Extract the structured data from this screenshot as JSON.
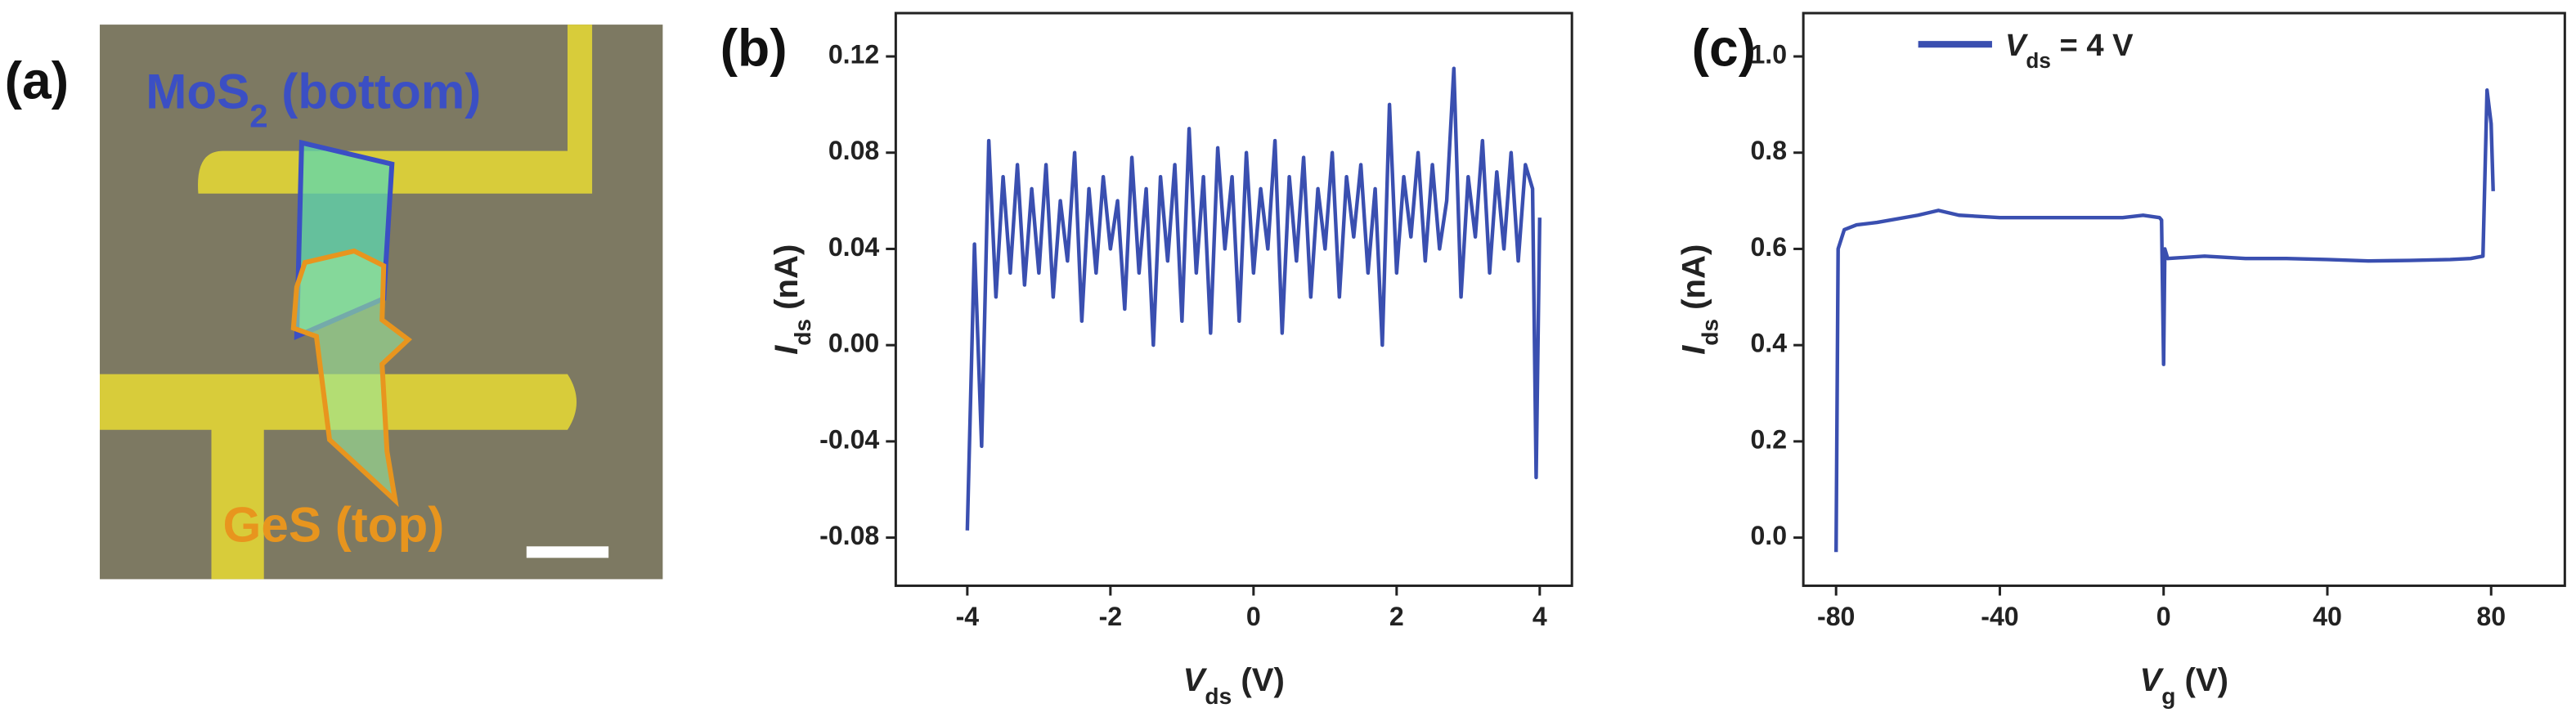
{
  "micrograph": {
    "panel": "(a)",
    "flake_bottom": {
      "main": "MoS",
      "sub": "2",
      "rest": " (bottom)"
    },
    "flake_top": "GeS (top)"
  },
  "chart_data": [
    {
      "type": "line",
      "panel": "(b)",
      "xlabel": {
        "main": "V",
        "sub": "ds",
        "unit": " (V)"
      },
      "ylabel": {
        "main": "I",
        "sub": "ds",
        "unit": " (nA)"
      },
      "xlim": [
        -5,
        4.45
      ],
      "xticks": [
        -4,
        -2,
        0,
        2,
        4
      ],
      "ylim": [
        -0.1,
        0.138
      ],
      "yticks": [
        -0.08,
        -0.04,
        {
          "value": 0,
          "label": "0.00"
        },
        0.04,
        0.08,
        0.12
      ],
      "x": [
        -4.0,
        -3.9,
        -3.8,
        -3.7,
        -3.6,
        -3.5,
        -3.4,
        -3.3,
        -3.2,
        -3.1,
        -3.0,
        -2.9,
        -2.8,
        -2.7,
        -2.6,
        -2.5,
        -2.4,
        -2.3,
        -2.2,
        -2.1,
        -2.0,
        -1.9,
        -1.8,
        -1.7,
        -1.6,
        -1.5,
        -1.4,
        -1.3,
        -1.2,
        -1.1,
        -1.0,
        -0.9,
        -0.8,
        -0.7,
        -0.6,
        -0.5,
        -0.4,
        -0.3,
        -0.2,
        -0.1,
        0.0,
        0.1,
        0.2,
        0.3,
        0.4,
        0.5,
        0.6,
        0.7,
        0.8,
        0.9,
        1.0,
        1.1,
        1.2,
        1.3,
        1.4,
        1.5,
        1.6,
        1.7,
        1.8,
        1.9,
        2.0,
        2.1,
        2.2,
        2.3,
        2.4,
        2.5,
        2.6,
        2.7,
        2.8,
        2.9,
        3.0,
        3.1,
        3.2,
        3.3,
        3.4,
        3.5,
        3.6,
        3.7,
        3.8,
        3.9,
        3.95,
        4.0
      ],
      "series": [
        {
          "color": "#3a4fb0",
          "values": [
            -0.077,
            0.042,
            -0.042,
            0.085,
            0.02,
            0.07,
            0.03,
            0.075,
            0.025,
            0.065,
            0.03,
            0.075,
            0.02,
            0.06,
            0.035,
            0.08,
            0.01,
            0.065,
            0.03,
            0.07,
            0.04,
            0.06,
            0.015,
            0.078,
            0.03,
            0.065,
            0.0,
            0.07,
            0.035,
            0.075,
            0.01,
            0.09,
            0.03,
            0.07,
            0.005,
            0.082,
            0.04,
            0.07,
            0.01,
            0.08,
            0.03,
            0.065,
            0.04,
            0.085,
            0.005,
            0.07,
            0.035,
            0.078,
            0.02,
            0.065,
            0.04,
            0.08,
            0.02,
            0.07,
            0.045,
            0.075,
            0.03,
            0.065,
            0.0,
            0.1,
            0.03,
            0.07,
            0.045,
            0.08,
            0.035,
            0.075,
            0.04,
            0.06,
            0.115,
            0.02,
            0.07,
            0.045,
            0.085,
            0.03,
            0.072,
            0.04,
            0.08,
            0.035,
            0.075,
            0.065,
            -0.055,
            0.053
          ]
        }
      ]
    },
    {
      "type": "line",
      "panel": "(c)",
      "xlabel": {
        "main": "V",
        "sub": "g",
        "unit": " (V)"
      },
      "ylabel": {
        "main": "I",
        "sub": "ds",
        "unit": " (nA)"
      },
      "xlim": [
        -88,
        98
      ],
      "xticks": [
        -80,
        -40,
        0,
        40,
        80
      ],
      "ylim": [
        -0.1,
        1.09
      ],
      "yticks": [
        {
          "value": 0,
          "label": "0.0"
        },
        0.2,
        0.4,
        0.6,
        0.8,
        {
          "value": 1,
          "label": "1.0"
        }
      ],
      "x": [
        -80,
        -79.5,
        -78,
        -75,
        -70,
        -60,
        -55,
        -50,
        -40,
        -30,
        -20,
        -10,
        -5,
        -1,
        -0.5,
        0,
        0.3,
        1,
        10,
        20,
        30,
        40,
        50,
        60,
        70,
        75,
        78,
        79,
        80,
        80.5
      ],
      "series": [
        {
          "name": {
            "main": "V",
            "sub": "ds",
            "rest": " = 4 V"
          },
          "color": "#3a4fb0",
          "values": [
            -0.03,
            0.6,
            0.64,
            0.65,
            0.655,
            0.67,
            0.68,
            0.67,
            0.665,
            0.665,
            0.665,
            0.665,
            0.67,
            0.665,
            0.66,
            0.36,
            0.6,
            0.58,
            0.585,
            0.58,
            0.58,
            0.578,
            0.575,
            0.576,
            0.578,
            0.58,
            0.585,
            0.93,
            0.86,
            0.72
          ]
        }
      ]
    }
  ]
}
